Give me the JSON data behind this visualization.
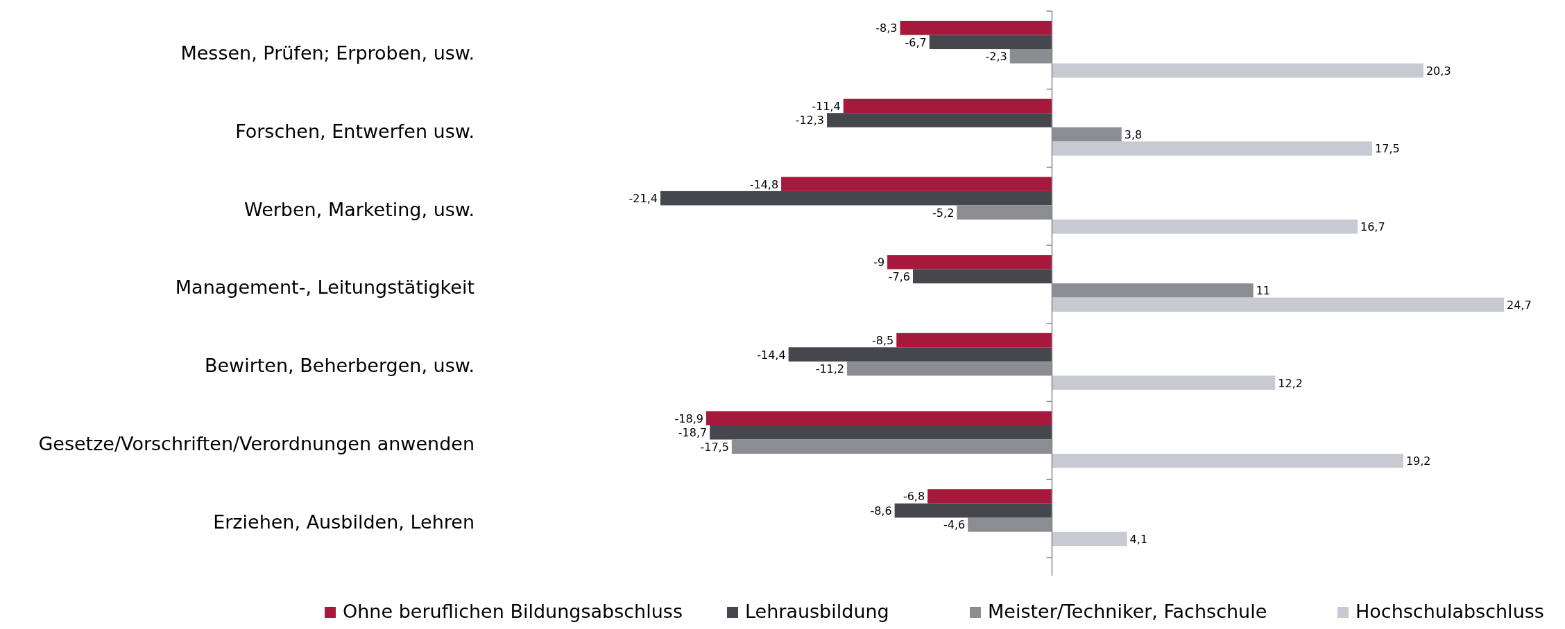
{
  "chart_data": {
    "type": "bar",
    "orientation": "horizontal",
    "legend": "bottom",
    "categories": [
      "Messen, Prüfen; Erproben, usw.",
      "Forschen, Entwerfen usw.",
      "Werben, Marketing, usw.",
      "Management-, Leitungstätigkeit",
      "Bewirten, Beherbergen, usw.",
      "Gesetze/Vorschriften/Verordnungen anwenden",
      "Erziehen, Ausbilden, Lehren"
    ],
    "series": [
      {
        "name": "Ohne beruflichen Bildungsabschluss",
        "color": "#a6193c",
        "values": [
          -8.3,
          -11.4,
          -14.8,
          -9,
          -8.5,
          -18.9,
          -6.8
        ],
        "value_labels": [
          "-8,3",
          "-11,4",
          "-14,8",
          "-9",
          "-8,5",
          "-18,9",
          "-6,8"
        ]
      },
      {
        "name": "Lehrausbildung",
        "color": "#45474d",
        "values": [
          -6.7,
          -12.3,
          -21.4,
          -7.6,
          -14.4,
          -18.7,
          -8.6
        ],
        "value_labels": [
          "-6,7",
          "-12,3",
          "-21,4",
          "-7,6",
          "-14,4",
          "-18,7",
          "-8,6"
        ]
      },
      {
        "name": "Meister/Techniker, Fachschule",
        "color": "#8b8d93",
        "values": [
          -2.3,
          3.8,
          -5.2,
          11,
          -11.2,
          -17.5,
          -4.6
        ],
        "value_labels": [
          "-2,3",
          "3,8",
          "-5,2",
          "11",
          "-11,2",
          "-17,5",
          "-4,6"
        ]
      },
      {
        "name": "Hochschulabschluss",
        "color": "#c8cad3",
        "values": [
          20.3,
          17.5,
          16.7,
          24.7,
          12.2,
          19.2,
          4.1
        ],
        "value_labels": [
          "20,3",
          "17,5",
          "16,7",
          "24,7",
          "12,2",
          "19,2",
          "4,1"
        ]
      }
    ]
  }
}
